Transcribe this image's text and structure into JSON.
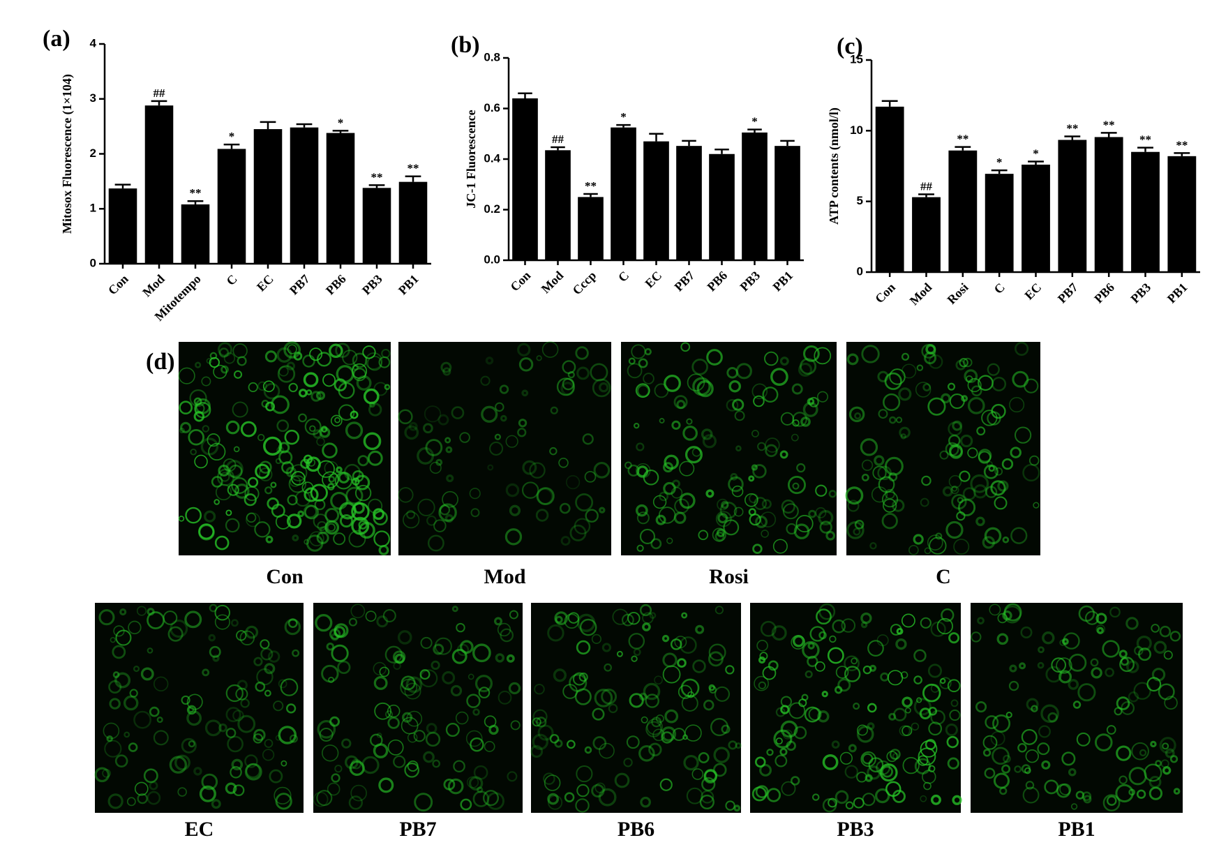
{
  "chart_data": [
    {
      "type": "bar",
      "panel_label": "(a)",
      "y_label": "Mitosox Fluorescence (1×104)",
      "categories": [
        "Con",
        "Mod",
        "Mitotempo",
        "C",
        "EC",
        "PB7",
        "PB6",
        "PB3",
        "PB1"
      ],
      "values": [
        1.37,
        2.88,
        1.08,
        2.09,
        2.45,
        2.48,
        2.38,
        1.38,
        1.49
      ],
      "errors": [
        0.07,
        0.08,
        0.06,
        0.08,
        0.13,
        0.06,
        0.04,
        0.05,
        0.1
      ],
      "annotations": [
        null,
        "##",
        "**",
        "*",
        null,
        null,
        "*",
        "**",
        "**"
      ],
      "color": "#000000",
      "ylim": [
        0,
        4
      ],
      "yticks": [
        0,
        1,
        2,
        3,
        4
      ]
    },
    {
      "type": "bar",
      "panel_label": "(b)",
      "y_label": "JC-1 Fluorescence",
      "categories": [
        "Con",
        "Mod",
        "Cccp",
        "C",
        "EC",
        "PB7",
        "PB6",
        "PB3",
        "PB1"
      ],
      "values": [
        0.64,
        0.435,
        0.25,
        0.525,
        0.47,
        0.452,
        0.42,
        0.505,
        0.452
      ],
      "errors": [
        0.02,
        0.012,
        0.012,
        0.01,
        0.03,
        0.02,
        0.018,
        0.012,
        0.02
      ],
      "annotations": [
        null,
        "##",
        "**",
        "*",
        null,
        null,
        null,
        "*",
        null
      ],
      "color": "#000000",
      "ylim": [
        0,
        0.8
      ],
      "yticks": [
        {
          "value": 0,
          "label": "0.0"
        },
        0.2,
        0.4,
        0.6,
        0.8
      ]
    },
    {
      "type": "bar",
      "panel_label": "(c)",
      "y_label": "ATP contents (nmol/l)",
      "categories": [
        "Con",
        "Mod",
        "Rosi",
        "C",
        "EC",
        "PB7",
        "PB6",
        "PB3",
        "PB1"
      ],
      "values": [
        11.7,
        5.3,
        8.6,
        6.95,
        7.6,
        9.35,
        9.55,
        8.5,
        8.2
      ],
      "errors": [
        0.4,
        0.2,
        0.25,
        0.25,
        0.22,
        0.25,
        0.3,
        0.3,
        0.22
      ],
      "annotations": [
        null,
        "##",
        "**",
        "*",
        "*",
        "**",
        "**",
        "**",
        "**"
      ],
      "color": "#000000",
      "ylim": [
        0,
        15
      ],
      "yticks": [
        0,
        5,
        10,
        15
      ]
    }
  ],
  "image_panel": {
    "label": "(d)",
    "images": [
      "Con",
      "Mod",
      "Rosi",
      "C",
      "EC",
      "PB7",
      "PB6",
      "PB3",
      "PB1"
    ]
  }
}
